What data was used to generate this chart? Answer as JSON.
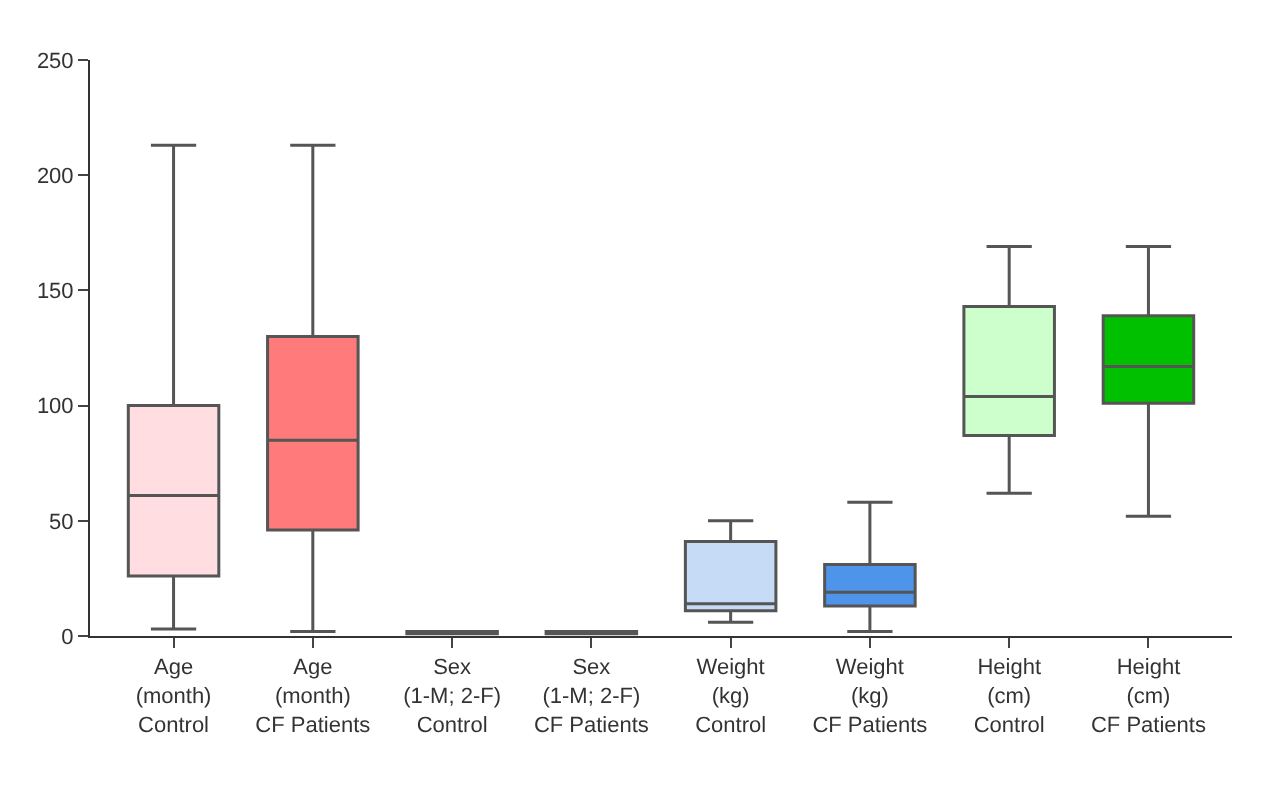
{
  "chart_data": {
    "type": "box",
    "categories": [
      "Age\n(month)\nControl",
      "Age\n(month)\nCF Patients",
      "Sex\n(1-M; 2-F)\nControl",
      "Sex\n(1-M; 2-F)\nCF Patients",
      "Weight\n(kg)\nControl",
      "Weight\n(kg)\nCF Patients",
      "Height\n(cm)\nControl",
      "Height\n(cm)\nCF Patients"
    ],
    "boxes": [
      {
        "low": 3,
        "q1": 26,
        "median": 61,
        "q3": 100,
        "high": 213
      },
      {
        "low": 2,
        "q1": 46,
        "median": 85,
        "q3": 130,
        "high": 213
      },
      {
        "low": 1,
        "q1": 1,
        "median": 1,
        "q3": 2,
        "high": 2
      },
      {
        "low": 1,
        "q1": 1,
        "median": 1,
        "q3": 2,
        "high": 2
      },
      {
        "low": 6,
        "q1": 11,
        "median": 14,
        "q3": 41,
        "high": 50
      },
      {
        "low": 2,
        "q1": 13,
        "median": 19,
        "q3": 31,
        "high": 58
      },
      {
        "low": 62,
        "q1": 87,
        "median": 104,
        "q3": 143,
        "high": 169
      },
      {
        "low": 52,
        "q1": 101,
        "median": 117,
        "q3": 139,
        "high": 169
      }
    ],
    "colors": [
      "#ffdde0",
      "#ff7b7b",
      "#000000",
      "#000000",
      "#c6dbf5",
      "#4d94ea",
      "#ccffcc",
      "#00c000"
    ],
    "ylim": [
      0,
      250
    ],
    "yticks": [
      0,
      50,
      100,
      150,
      200,
      250
    ]
  }
}
